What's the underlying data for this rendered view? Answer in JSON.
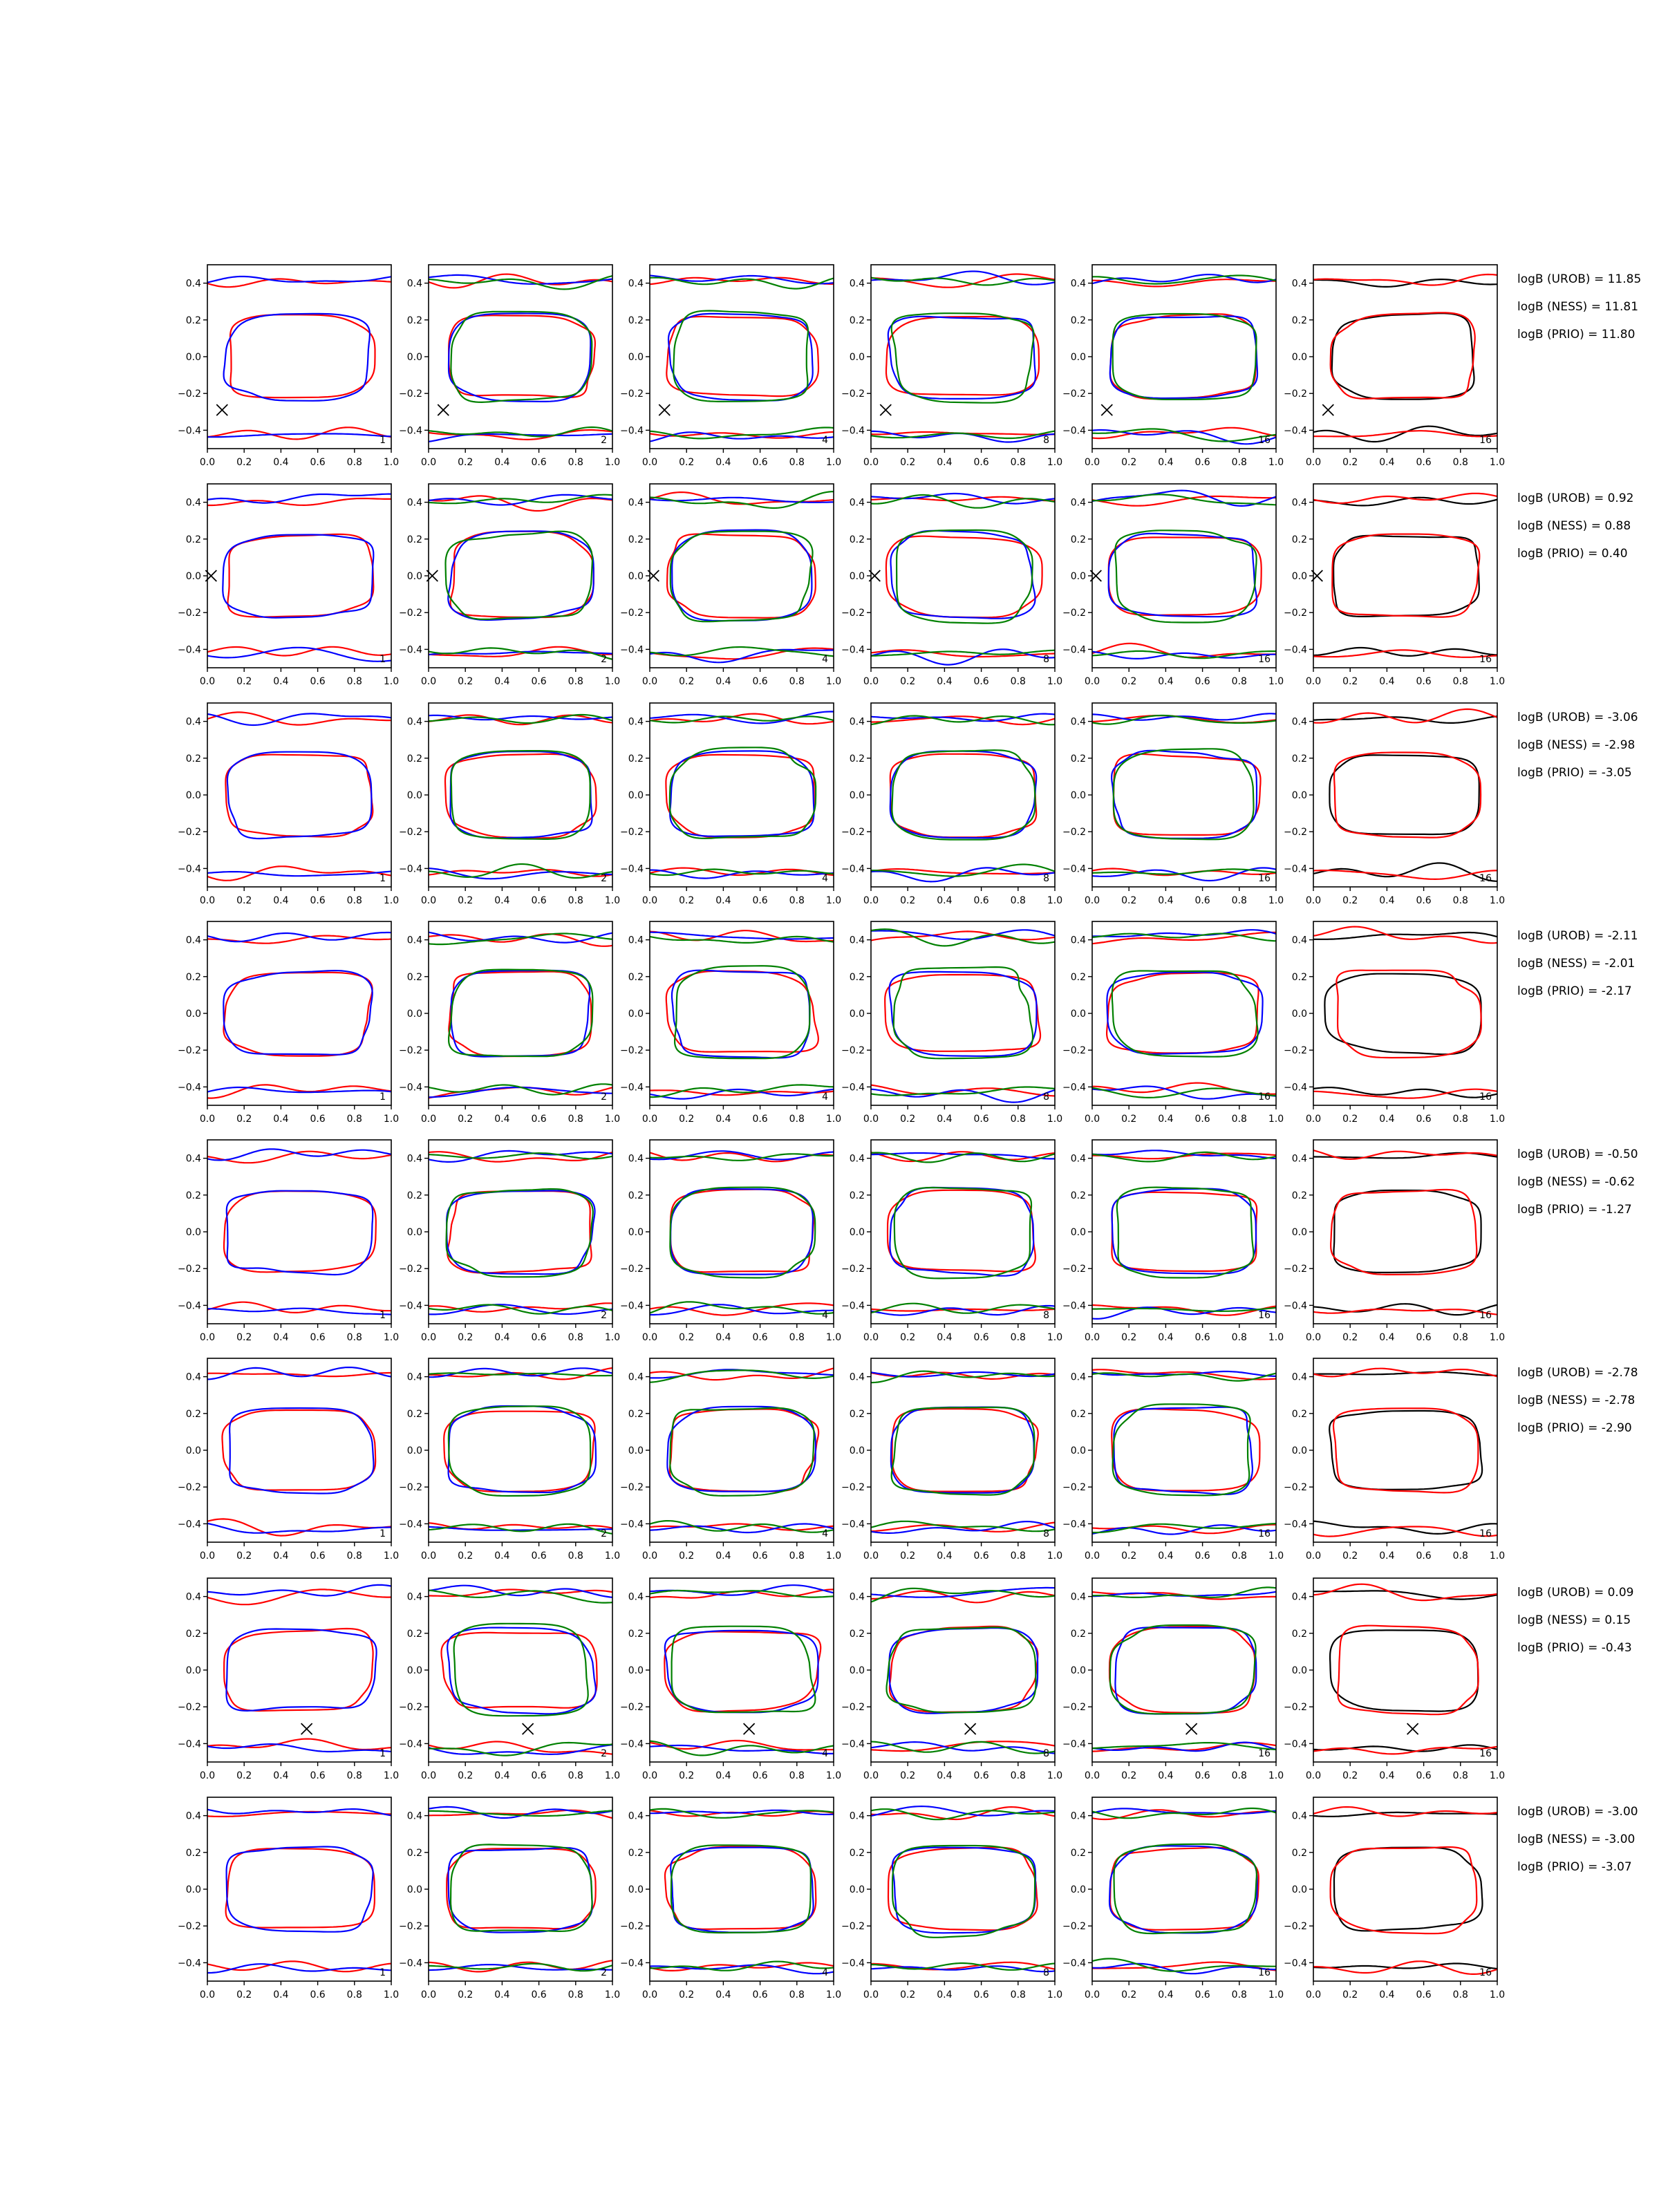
{
  "figure": {
    "x_ticks": [
      "0.0",
      "0.2",
      "0.4",
      "0.6",
      "0.8",
      "1.0"
    ],
    "y_ticks": [
      "0.4",
      "0.2",
      "0.0",
      "−0.2",
      "−0.4"
    ],
    "x_tick_values": [
      0.0,
      0.2,
      0.4,
      0.6,
      0.8,
      1.0
    ],
    "y_tick_values": [
      0.4,
      0.2,
      0.0,
      -0.2,
      -0.4
    ],
    "xlim": [
      0.0,
      1.0
    ],
    "ylim": [
      -0.5,
      0.5
    ],
    "column_corner_labels": [
      "1",
      "2",
      "4",
      "8",
      "16",
      "16"
    ],
    "colors": {
      "red": "#ff0000",
      "blue": "#0000ff",
      "green": "#008000",
      "black": "#000000",
      "marker": "#000000"
    }
  },
  "chart_data": [
    {
      "row": 1,
      "type": "line",
      "marker": {
        "x": 0.08,
        "y": -0.29
      },
      "annotations": [
        "logB (UROB) = 11.85",
        "logB (NESS) = 11.81",
        "logB (PRIO) = 11.80"
      ]
    },
    {
      "row": 2,
      "type": "line",
      "marker": {
        "x": 0.02,
        "y": 0.0
      },
      "annotations": [
        "logB (UROB) = 0.92",
        "logB (NESS) = 0.88",
        "logB (PRIO) = 0.40"
      ]
    },
    {
      "row": 3,
      "type": "line",
      "marker": null,
      "annotations": [
        "logB (UROB) = -3.06",
        "logB (NESS) = -2.98",
        "logB (PRIO) = -3.05"
      ]
    },
    {
      "row": 4,
      "type": "line",
      "marker": null,
      "annotations": [
        "logB (UROB) = -2.11",
        "logB (NESS) = -2.01",
        "logB (PRIO) = -2.17"
      ]
    },
    {
      "row": 5,
      "type": "line",
      "marker": null,
      "annotations": [
        "logB (UROB) = -0.50",
        "logB (NESS) = -0.62",
        "logB (PRIO) = -1.27"
      ]
    },
    {
      "row": 6,
      "type": "line",
      "marker": null,
      "annotations": [
        "logB (UROB) = -2.78",
        "logB (NESS) = -2.78",
        "logB (PRIO) = -2.90"
      ]
    },
    {
      "row": 7,
      "type": "line",
      "marker": {
        "x": 0.54,
        "y": -0.32
      },
      "annotations": [
        "logB (UROB) = 0.09",
        "logB (NESS) = 0.15",
        "logB (PRIO) = -0.43"
      ]
    },
    {
      "row": 8,
      "type": "line",
      "marker": null,
      "annotations": [
        "logB (UROB) = -3.00",
        "logB (NESS) = -3.00",
        "logB (PRIO) = -3.07"
      ]
    }
  ]
}
